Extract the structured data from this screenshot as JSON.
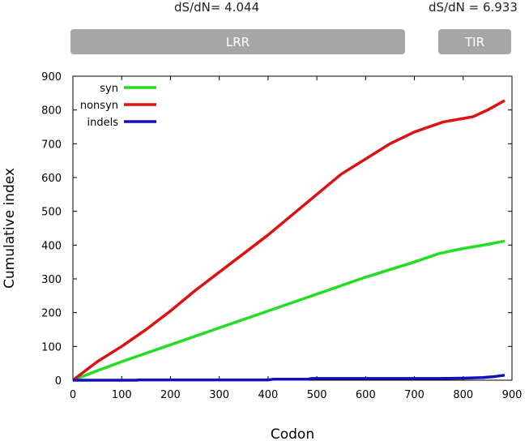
{
  "annotations": {
    "lrr_ratio": "dS/dN= 4.044",
    "tir_ratio": "dS/dN = 6.933"
  },
  "regions": [
    {
      "label": "LRR",
      "start": 0,
      "end": 675
    },
    {
      "label": "TIR",
      "start": 750,
      "end": 900
    }
  ],
  "colors": {
    "syn": "#22dd22",
    "nonsyn": "#dd1111",
    "indels": "#1111bb",
    "region": "#a6a6a6"
  },
  "chart_data": {
    "type": "line",
    "xlabel": "Codon",
    "ylabel": "Cumulative index",
    "xlim": [
      0,
      900
    ],
    "ylim": [
      0,
      900
    ],
    "xticks": [
      0,
      100,
      200,
      300,
      400,
      500,
      600,
      700,
      800,
      900
    ],
    "yticks": [
      0,
      100,
      200,
      300,
      400,
      500,
      600,
      700,
      800,
      900
    ],
    "legend_position": "top-left",
    "grid": false,
    "series": [
      {
        "name": "syn",
        "color": "#22dd22",
        "x": [
          0,
          50,
          100,
          200,
          300,
          400,
          500,
          600,
          700,
          750,
          800,
          850,
          885
        ],
        "y": [
          0,
          28,
          55,
          105,
          155,
          205,
          255,
          305,
          350,
          375,
          390,
          402,
          412
        ]
      },
      {
        "name": "nonsyn",
        "color": "#dd1111",
        "x": [
          0,
          50,
          100,
          150,
          200,
          250,
          300,
          350,
          400,
          450,
          500,
          550,
          600,
          650,
          700,
          730,
          760,
          800,
          820,
          850,
          885
        ],
        "y": [
          0,
          55,
          100,
          150,
          205,
          265,
          320,
          375,
          430,
          490,
          550,
          610,
          655,
          700,
          735,
          750,
          765,
          775,
          780,
          800,
          828
        ]
      },
      {
        "name": "indels",
        "color": "#1111bb",
        "x": [
          0,
          130,
          135,
          400,
          410,
          480,
          490,
          750,
          800,
          840,
          860,
          885
        ],
        "y": [
          0,
          0,
          1,
          1,
          3,
          3,
          5,
          5,
          6,
          8,
          10,
          15
        ]
      }
    ]
  }
}
